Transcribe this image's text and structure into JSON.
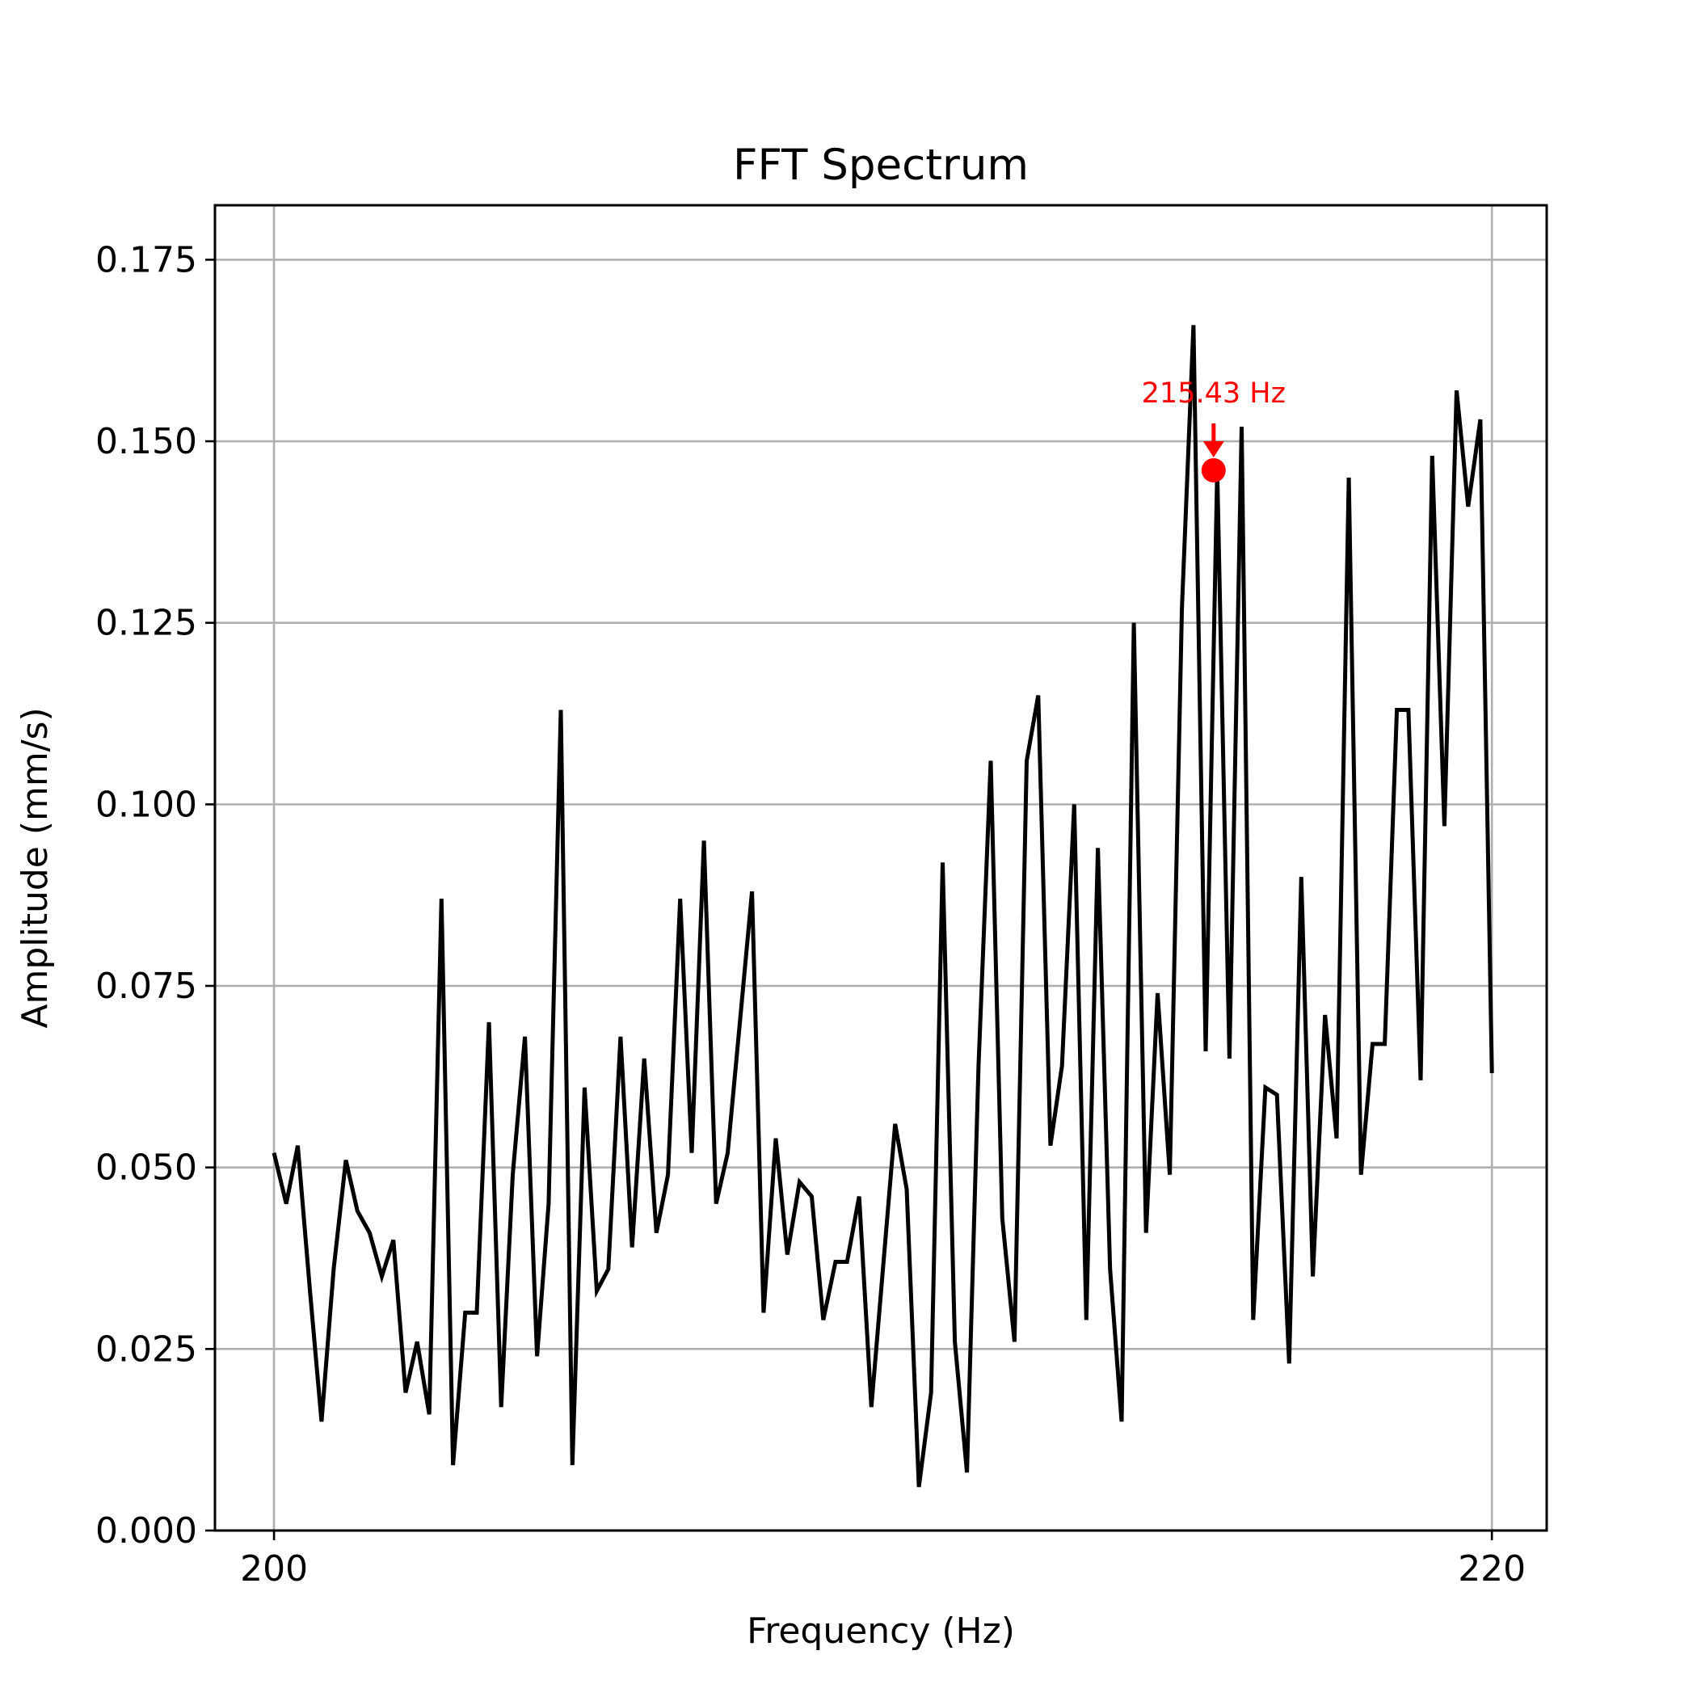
{
  "chart_data": {
    "type": "line",
    "title": "FFT Spectrum",
    "xlabel": "Frequency (Hz)",
    "ylabel": "Amplitude (mm/s)",
    "xlim": [
      199.03,
      220.9
    ],
    "ylim": [
      0,
      0.1825
    ],
    "xticks": [
      200,
      220
    ],
    "yticks": [
      0.0,
      0.025,
      0.05,
      0.075,
      0.1,
      0.125,
      0.15,
      0.175
    ],
    "ytick_labels": [
      "0.000",
      "0.025",
      "0.050",
      "0.075",
      "0.100",
      "0.125",
      "0.150",
      "0.175"
    ],
    "grid": true,
    "series": [
      {
        "color": "#000000",
        "x": [
          200.0,
          200.2,
          200.39,
          200.59,
          200.78,
          200.98,
          201.18,
          201.37,
          201.57,
          201.77,
          201.96,
          202.16,
          202.35,
          202.55,
          202.75,
          202.94,
          203.14,
          203.33,
          203.53,
          203.73,
          203.92,
          204.12,
          204.32,
          204.51,
          204.71,
          204.9,
          205.1,
          205.3,
          205.49,
          205.69,
          205.88,
          206.08,
          206.28,
          206.47,
          206.67,
          206.86,
          207.06,
          207.26,
          207.45,
          207.65,
          207.85,
          208.04,
          208.24,
          208.43,
          208.63,
          208.83,
          209.02,
          209.22,
          209.41,
          209.61,
          209.81,
          210.0,
          210.2,
          210.39,
          210.59,
          210.79,
          210.98,
          211.18,
          211.38,
          211.57,
          211.77,
          211.96,
          212.16,
          212.36,
          212.55,
          212.75,
          212.94,
          213.14,
          213.34,
          213.53,
          213.73,
          213.92,
          214.12,
          214.32,
          214.51,
          214.71,
          214.91,
          215.1,
          215.3,
          215.49,
          215.69,
          215.89,
          216.08,
          216.28,
          216.47,
          216.67,
          216.87,
          217.06,
          217.26,
          217.45,
          217.65,
          217.85,
          218.04,
          218.24,
          218.44,
          218.63,
          218.83,
          219.02,
          219.22,
          219.42,
          219.61,
          219.81,
          220.0
        ],
        "y": [
          0.052,
          0.045,
          0.053,
          0.033,
          0.015,
          0.036,
          0.051,
          0.044,
          0.041,
          0.035,
          0.04,
          0.019,
          0.026,
          0.016,
          0.087,
          0.009,
          0.03,
          0.03,
          0.07,
          0.017,
          0.049,
          0.068,
          0.024,
          0.045,
          0.113,
          0.009,
          0.061,
          0.033,
          0.036,
          0.068,
          0.039,
          0.065,
          0.041,
          0.049,
          0.087,
          0.052,
          0.095,
          0.045,
          0.052,
          0.07,
          0.088,
          0.03,
          0.054,
          0.038,
          0.048,
          0.046,
          0.029,
          0.037,
          0.037,
          0.046,
          0.017,
          0.036,
          0.056,
          0.047,
          0.006,
          0.019,
          0.092,
          0.026,
          0.008,
          0.064,
          0.106,
          0.043,
          0.026,
          0.106,
          0.115,
          0.053,
          0.064,
          0.1,
          0.029,
          0.094,
          0.036,
          0.015,
          0.125,
          0.041,
          0.074,
          0.049,
          0.127,
          0.166,
          0.066,
          0.146,
          0.065,
          0.152,
          0.029,
          0.061,
          0.06,
          0.023,
          0.09,
          0.035,
          0.071,
          0.054,
          0.145,
          0.049,
          0.067,
          0.067,
          0.113,
          0.113,
          0.062,
          0.148,
          0.097,
          0.157,
          0.141,
          0.153,
          0.063
        ]
      }
    ],
    "annotations": [
      {
        "text": "215.43 Hz",
        "x": 215.43,
        "y": 0.146,
        "color": "#ff0000"
      }
    ]
  }
}
